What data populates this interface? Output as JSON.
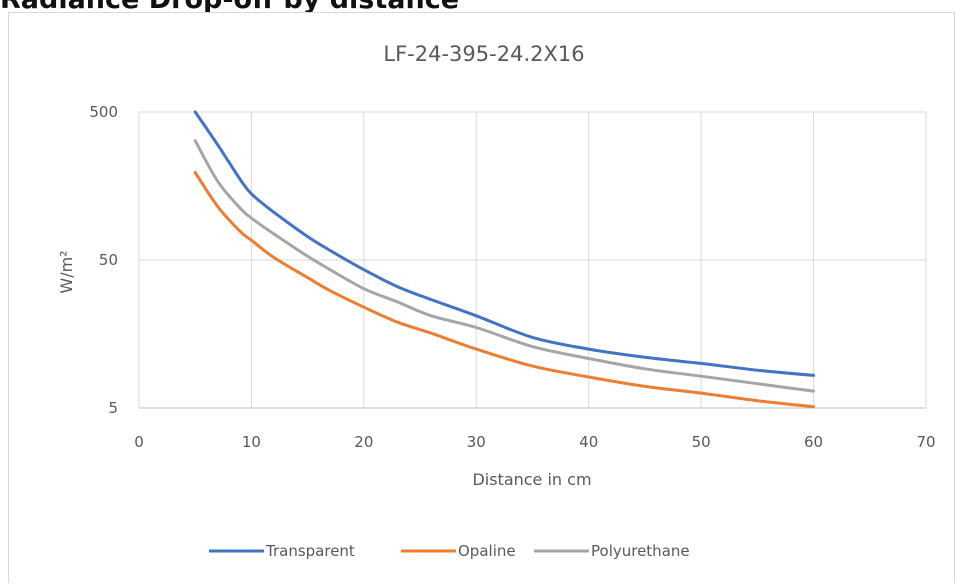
{
  "page": {
    "heading": "Radiance Drop-off by distance"
  },
  "chart_data": {
    "type": "line",
    "title": "LF-24-395-24.2X16",
    "xlabel": "Distance in cm",
    "ylabel": "W/m²",
    "xlim": [
      0,
      70
    ],
    "ylim": [
      5,
      500
    ],
    "yscale": "log",
    "x_ticks": [
      "0",
      "10",
      "20",
      "30",
      "40",
      "50",
      "60",
      "70"
    ],
    "y_ticks": [
      "500",
      "50",
      "5"
    ],
    "grid": true,
    "legend_position": "bottom",
    "series": [
      {
        "name": "Transparent",
        "color": "#4472C4",
        "points": [
          [
            5,
            500
          ],
          [
            7,
            300
          ],
          [
            9,
            175
          ],
          [
            10,
            140
          ],
          [
            12,
            105
          ],
          [
            15,
            72
          ],
          [
            17,
            58
          ],
          [
            20,
            43
          ],
          [
            23,
            33
          ],
          [
            26,
            27
          ],
          [
            30,
            21
          ],
          [
            35,
            15
          ],
          [
            40,
            12.5
          ],
          [
            45,
            11
          ],
          [
            50,
            10
          ],
          [
            55,
            9
          ],
          [
            60,
            8.3
          ]
        ]
      },
      {
        "name": "Opaline",
        "color": "#ED7D31",
        "points": [
          [
            5,
            195
          ],
          [
            7,
            115
          ],
          [
            9,
            78
          ],
          [
            10,
            68
          ],
          [
            12,
            52
          ],
          [
            15,
            38
          ],
          [
            17,
            31
          ],
          [
            20,
            24
          ],
          [
            23,
            19
          ],
          [
            26,
            16
          ],
          [
            30,
            12.5
          ],
          [
            35,
            9.6
          ],
          [
            40,
            8.1
          ],
          [
            45,
            7
          ],
          [
            50,
            6.3
          ],
          [
            55,
            5.6
          ],
          [
            60,
            5.1
          ]
        ]
      },
      {
        "name": "Polyurethane",
        "color": "#A5A5A5",
        "points": [
          [
            5,
            320
          ],
          [
            7,
            170
          ],
          [
            9,
            112
          ],
          [
            10,
            96
          ],
          [
            12,
            75
          ],
          [
            15,
            53
          ],
          [
            17,
            43
          ],
          [
            20,
            32
          ],
          [
            23,
            26
          ],
          [
            26,
            21
          ],
          [
            30,
            17.5
          ],
          [
            35,
            13
          ],
          [
            40,
            10.8
          ],
          [
            45,
            9.2
          ],
          [
            50,
            8.2
          ],
          [
            55,
            7.3
          ],
          [
            60,
            6.5
          ]
        ]
      }
    ]
  }
}
